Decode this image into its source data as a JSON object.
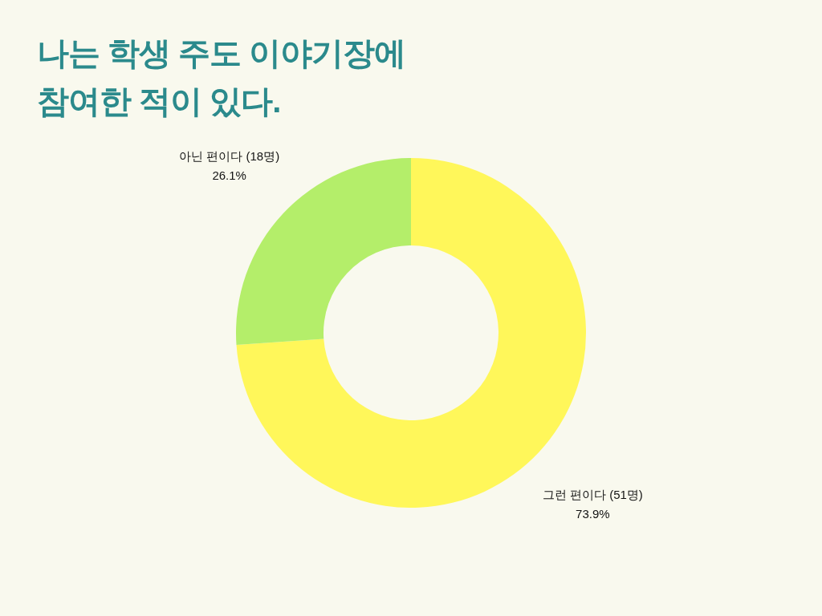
{
  "chart_data": {
    "type": "donut",
    "title": "나는 학생 주도 이야기장에 참여한 적이 있다.",
    "categories": [
      "그런 편이다 (51명)",
      "아닌 편이다 (18명)"
    ],
    "values": [
      73.9,
      26.1
    ],
    "colors": [
      "#fff75a",
      "#b4ee6a"
    ],
    "value_labels": [
      "73.9%",
      "26.1%"
    ]
  }
}
